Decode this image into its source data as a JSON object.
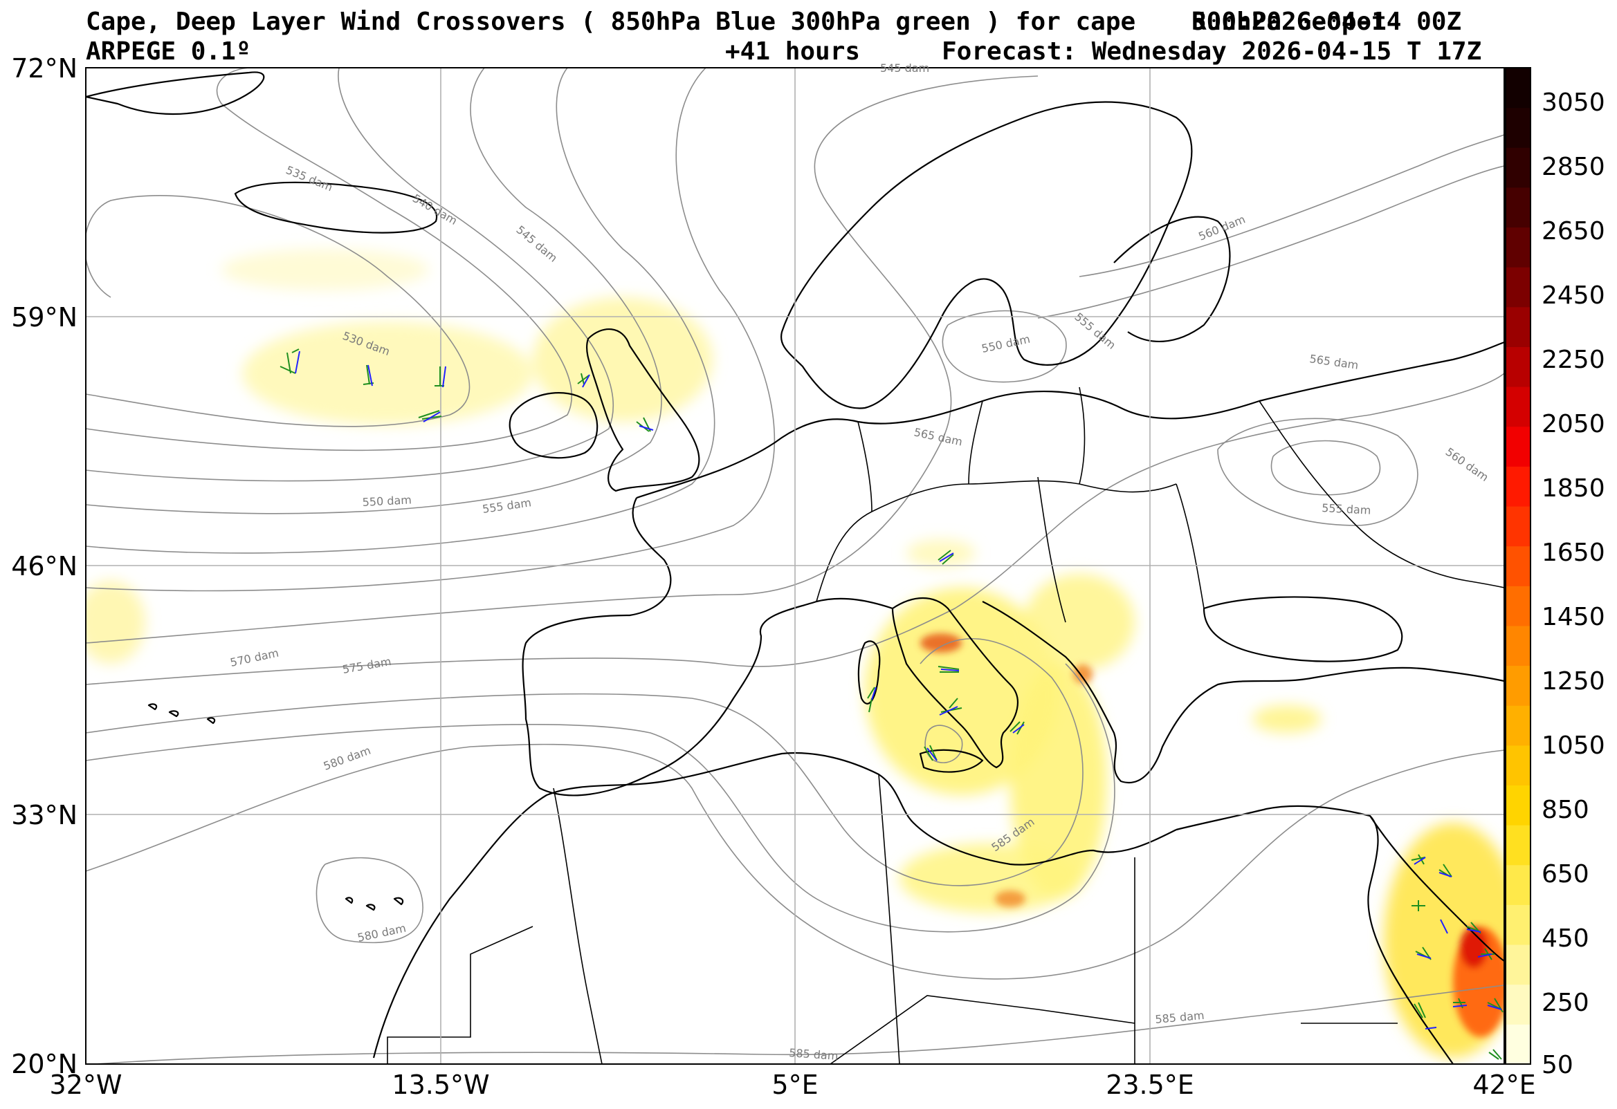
{
  "title": {
    "main": "Cape, Deep Layer Wind Crossovers ( 850hPa Blue 300hPa green ) for cape",
    "run": "Run:2026-04-14 00Z",
    "overlay": "500hPa Geopot",
    "model": "ARPEGE 0.1º",
    "lead": "+41 hours",
    "forecast": "Forecast: Wednesday 2026-04-15 T 17Z"
  },
  "axes": {
    "lat_labels": [
      "72°N",
      "59°N",
      "46°N",
      "33°N",
      "20°N"
    ],
    "lon_labels": [
      "32°W",
      "13.5°W",
      "5°E",
      "23.5°E",
      "42°E"
    ]
  },
  "colorbar": {
    "ticks": [
      "3050",
      "2850",
      "2650",
      "2450",
      "2250",
      "2050",
      "1850",
      "1650",
      "1450",
      "1250",
      "1050",
      "850",
      "650",
      "450",
      "250",
      "50"
    ],
    "colors": [
      "#ffffe0",
      "#fffac0",
      "#fff59a",
      "#fff070",
      "#ffe94a",
      "#ffe020",
      "#ffd400",
      "#ffc400",
      "#ffb000",
      "#ff9c00",
      "#ff8600",
      "#ff6e00",
      "#ff5200",
      "#ff3400",
      "#ff1a00",
      "#f20000",
      "#d40000",
      "#b80000",
      "#9a0000",
      "#7c0000",
      "#600000",
      "#460000",
      "#300000",
      "#1e0000",
      "#120000"
    ]
  },
  "contour_labels": [
    "535 dam",
    "540 dam",
    "545 dam",
    "545 dam",
    "530 dam",
    "550 dam",
    "555 dam",
    "570 dam",
    "575 dam",
    "580 dam",
    "580 dam",
    "585 dam",
    "585 dam",
    "585 dam",
    "550 dam",
    "555 dam",
    "565 dam",
    "565 dam",
    "560 dam",
    "560 dam",
    "555 dam"
  ],
  "legend_colors": {
    "wind_850hPa": "#2020ff",
    "wind_300hPa": "#1f8f1f",
    "coastline": "#000000",
    "geopotential": "#8c8c8c",
    "gridline": "#b0b0b0"
  }
}
